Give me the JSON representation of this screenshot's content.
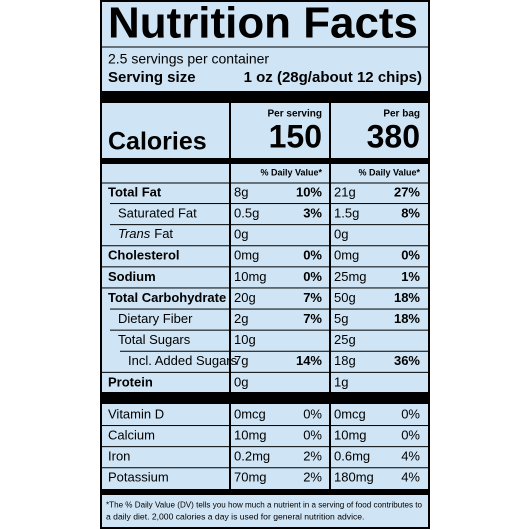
{
  "title": "Nutrition Facts",
  "servings": "2.5 servings per container",
  "serving_size": {
    "label": "Serving size",
    "value": "1 oz (28g/about 12 chips)"
  },
  "calories_label": "Calories",
  "columns": [
    {
      "header": "Per serving",
      "calories": 150,
      "dv_header": "% Daily Value*"
    },
    {
      "header": "Per bag",
      "calories": 380,
      "dv_header": "% Daily Value*"
    }
  ],
  "nutrients": [
    {
      "name": "Total Fat",
      "bold": true,
      "level": 0,
      "amounts": [
        {
          "amount": "8g",
          "dv": "10%"
        },
        {
          "amount": "21g",
          "dv": "27%"
        }
      ]
    },
    {
      "name": "Saturated Fat",
      "bold": false,
      "level": 1,
      "amounts": [
        {
          "amount": "0.5g",
          "dv": "3%"
        },
        {
          "amount": "1.5g",
          "dv": "8%"
        }
      ]
    },
    {
      "italic_prefix": "Trans",
      "name": "Fat",
      "bold": false,
      "level": 1,
      "amounts": [
        {
          "amount": "0g"
        },
        {
          "amount": "0g"
        }
      ]
    },
    {
      "name": "Cholesterol",
      "bold": true,
      "level": 0,
      "amounts": [
        {
          "amount": "0mg",
          "dv": "0%"
        },
        {
          "amount": "0mg",
          "dv": "0%"
        }
      ]
    },
    {
      "name": "Sodium",
      "bold": true,
      "level": 0,
      "amounts": [
        {
          "amount": "10mg",
          "dv": "0%"
        },
        {
          "amount": "25mg",
          "dv": "1%"
        }
      ]
    },
    {
      "name": "Total Carbohydrate",
      "bold": true,
      "level": 0,
      "amounts": [
        {
          "amount": "20g",
          "dv": "7%"
        },
        {
          "amount": "50g",
          "dv": "18%"
        }
      ]
    },
    {
      "name": "Dietary Fiber",
      "bold": false,
      "level": 1,
      "amounts": [
        {
          "amount": "2g",
          "dv": "7%"
        },
        {
          "amount": "5g",
          "dv": "18%"
        }
      ]
    },
    {
      "name": "Total Sugars",
      "bold": false,
      "level": 1,
      "amounts": [
        {
          "amount": "10g"
        },
        {
          "amount": "25g"
        }
      ]
    },
    {
      "name": "Incl. Added Sugars",
      "bold": false,
      "level": 2,
      "amounts": [
        {
          "amount": "7g",
          "dv": "14%"
        },
        {
          "amount": "18g",
          "dv": "36%"
        }
      ]
    },
    {
      "name": "Protein",
      "bold": true,
      "level": 0,
      "amounts": [
        {
          "amount": "0g"
        },
        {
          "amount": "1g"
        }
      ]
    }
  ],
  "micronutrients": [
    {
      "name": "Vitamin D",
      "amounts": [
        {
          "amount": "0mcg",
          "dv": "0%"
        },
        {
          "amount": "0mcg",
          "dv": "0%"
        }
      ]
    },
    {
      "name": "Calcium",
      "amounts": [
        {
          "amount": "10mg",
          "dv": "0%"
        },
        {
          "amount": "10mg",
          "dv": "0%"
        }
      ]
    },
    {
      "name": "Iron",
      "amounts": [
        {
          "amount": "0.2mg",
          "dv": "2%"
        },
        {
          "amount": "0.6mg",
          "dv": "4%"
        }
      ]
    },
    {
      "name": "Potassium",
      "amounts": [
        {
          "amount": "70mg",
          "dv": "2%"
        },
        {
          "amount": "180mg",
          "dv": "4%"
        }
      ]
    }
  ],
  "footnote": [
    "*The % Daily Value (DV) tells you how much a nutrient in a serving of food contributes to",
    "a daily diet. 2,000 calories a day is used for general nutrition advice."
  ]
}
